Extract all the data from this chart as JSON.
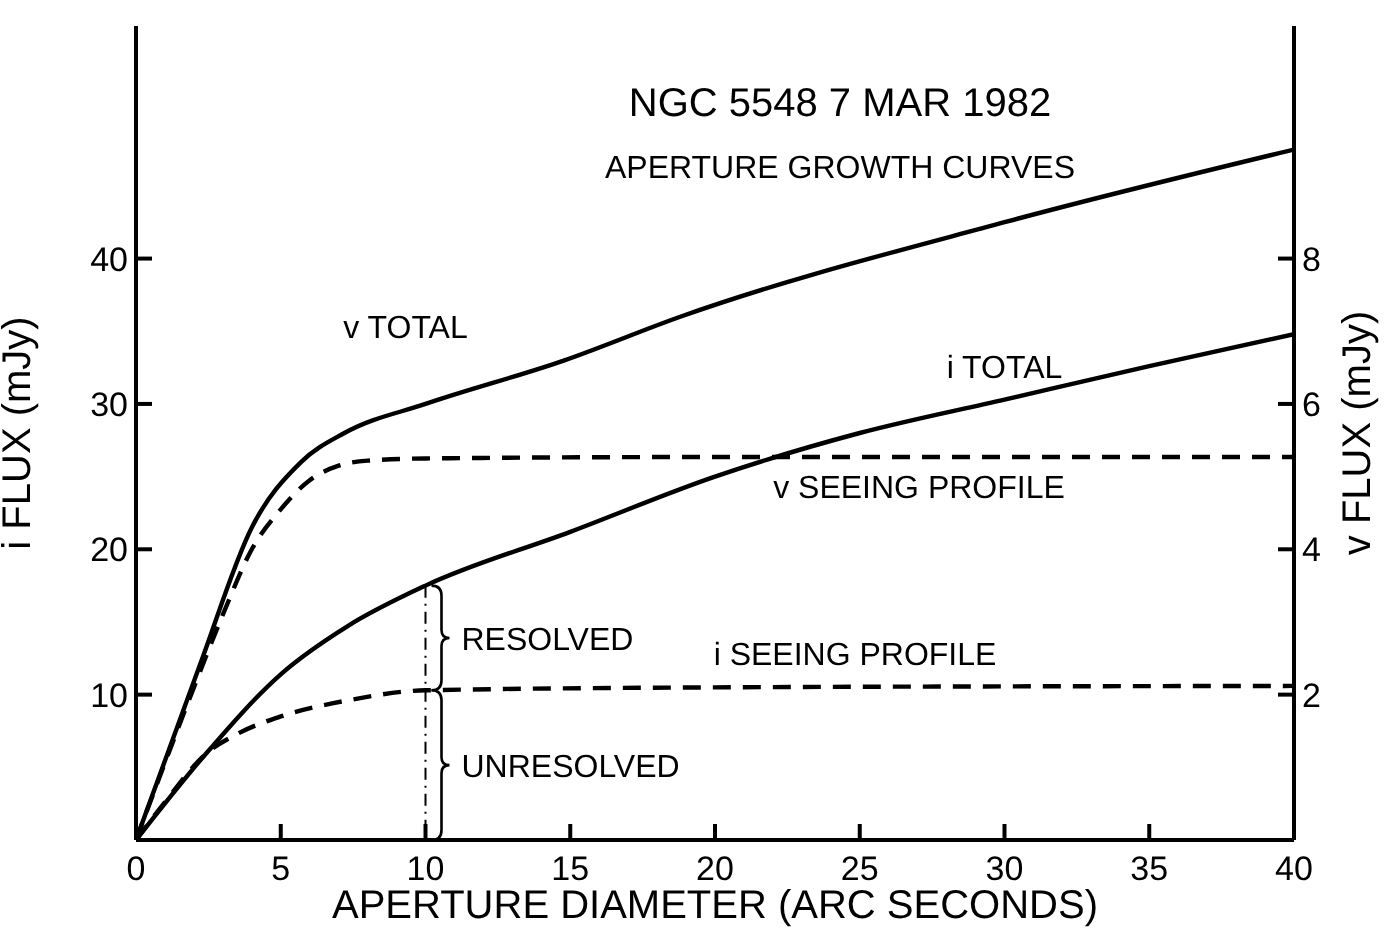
{
  "chart_data": {
    "type": "line",
    "title": "NGC 5548 7 MAR 1982",
    "subtitle": "APERTURE GROWTH CURVES",
    "xlabel": "APERTURE DIAMETER (ARC SECONDS)",
    "ylabel": "i FLUX (mJy)",
    "y2label": "v FLUX (mJy)",
    "xlim": [
      0,
      40
    ],
    "xticks": [
      0,
      5,
      10,
      15,
      20,
      25,
      30,
      35,
      40
    ],
    "ylim": [
      0,
      56
    ],
    "yticks": [
      10,
      20,
      30,
      40
    ],
    "y2lim": [
      0,
      11.2
    ],
    "y2ticks": [
      2,
      4,
      6,
      8
    ],
    "grid": false,
    "legend": false,
    "marker": "none",
    "series": [
      {
        "name": "v TOTAL",
        "color": "#000000",
        "axis": "y2",
        "line_style": "solid",
        "x": [
          0,
          2.2,
          4,
          5.7,
          7.2,
          10,
          14.8,
          18.8,
          30,
          40
        ],
        "values": [
          0,
          2.4,
          4.3,
          5.2,
          5.6,
          6.0,
          6.6,
          7.2,
          8.5,
          9.5
        ]
      },
      {
        "name": "i TOTAL",
        "color": "#000000",
        "line_style": "solid",
        "x": [
          0,
          2.4,
          5,
          7.3,
          10,
          15,
          20,
          25,
          30,
          35,
          40
        ],
        "values": [
          0,
          5.9,
          11.4,
          14.7,
          17.5,
          21.2,
          25,
          28,
          30.3,
          32.6,
          34.8
        ]
      },
      {
        "name": "v SEEING PROFILE",
        "color": "#000000",
        "axis": "y2",
        "line_style": "dashed",
        "x": [
          0,
          2,
          3,
          4,
          5,
          6,
          7,
          8,
          10,
          20,
          40
        ],
        "values": [
          0,
          2.1,
          3.1,
          4.0,
          4.55,
          4.95,
          5.15,
          5.22,
          5.25,
          5.27,
          5.27
        ]
      },
      {
        "name": "i SEEING PROFILE",
        "color": "#000000",
        "line_style": "dashed",
        "x": [
          0,
          1,
          2.4,
          3.5,
          5,
          7.3,
          10,
          20,
          40
        ],
        "values": [
          0,
          2.6,
          5.9,
          7.3,
          8.5,
          9.6,
          10.3,
          10.5,
          10.6
        ]
      }
    ],
    "annotations": [
      "RESOLVED",
      "UNRESOLVED"
    ]
  }
}
